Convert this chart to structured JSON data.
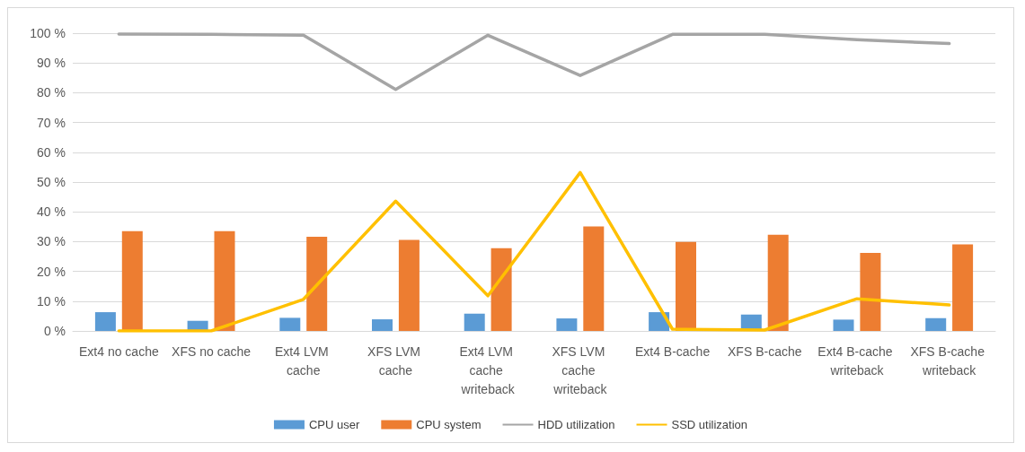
{
  "chart_data": {
    "type": "bar",
    "categories": [
      "Ext4 no cache",
      "XFS no cache",
      "Ext4 LVM cache",
      "XFS LVM cache",
      "Ext4 LVM cache writeback",
      "XFS LVM cache writeback",
      "Ext4 B-cache",
      "XFS B-cache",
      "Ext4 B-cache writeback",
      "XFS B-cache writeback"
    ],
    "series": [
      {
        "name": "CPU user",
        "color": "#5b9bd5",
        "values": [
          6.3,
          3.4,
          4.4,
          3.9,
          5.8,
          4.2,
          6.3,
          5.5,
          3.8,
          4.3
        ]
      },
      {
        "name": "CPU system",
        "color": "#ed7d31",
        "values": [
          33.5,
          33.5,
          31.6,
          30.6,
          27.8,
          35.1,
          29.9,
          32.3,
          26.2,
          29.1
        ]
      },
      {
        "name": "HDD utilization",
        "type": "line",
        "color": "#a5a5a5",
        "values": [
          99.7,
          99.6,
          99.3,
          81.1,
          99.3,
          85.8,
          99.6,
          99.6,
          97.8,
          96.5
        ]
      },
      {
        "name": "SSD utilization",
        "type": "line",
        "color": "#ffc000",
        "values": [
          0,
          0,
          10.6,
          43.6,
          11.8,
          53.2,
          0.6,
          0.3,
          10.8,
          8.7
        ]
      }
    ],
    "ylim": [
      0,
      100
    ],
    "yticks": [
      {
        "value": 0,
        "label": "0 %"
      },
      {
        "value": 10,
        "label": "10 %"
      },
      {
        "value": 20,
        "label": "20 %"
      },
      {
        "value": 30,
        "label": "30 %"
      },
      {
        "value": 40,
        "label": "40 %"
      },
      {
        "value": 50,
        "label": "50 %"
      },
      {
        "value": 60,
        "label": "60 %"
      },
      {
        "value": 70,
        "label": "70 %"
      },
      {
        "value": 80,
        "label": "80 %"
      },
      {
        "value": 90,
        "label": "90 %"
      },
      {
        "value": 100,
        "label": "100 %"
      }
    ],
    "grid": "y",
    "legend": "bottom",
    "marker": "none",
    "line_style": "solid"
  }
}
